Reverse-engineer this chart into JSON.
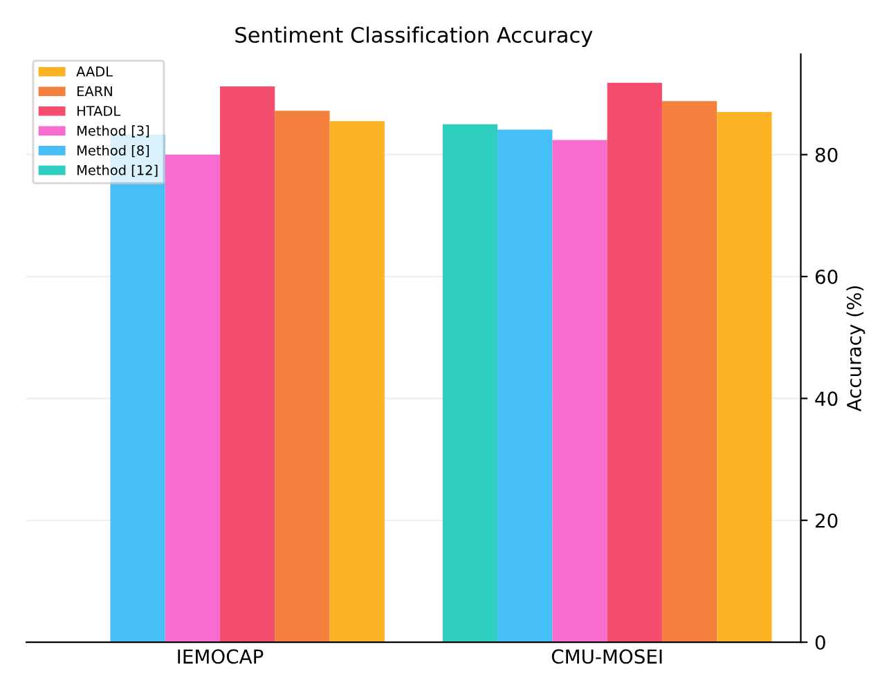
{
  "chart_data": {
    "type": "bar",
    "title": "Sentiment Classification Accuracy",
    "ylabel": "Accuracy (%)",
    "categories": [
      "IEMOCAP",
      "CMU-MOSEI"
    ],
    "series": [
      {
        "name": "Method [12]",
        "color": "#2ecfc0",
        "values": [
          null,
          85.0
        ]
      },
      {
        "name": "Method [8]",
        "color": "#45bff5",
        "values": [
          83.3,
          84.1
        ]
      },
      {
        "name": "Method [3]",
        "color": "#f76dcf",
        "values": [
          80.0,
          82.4
        ]
      },
      {
        "name": "HTADL",
        "color": "#f54d6e",
        "values": [
          91.2,
          91.8
        ]
      },
      {
        "name": "EARN",
        "color": "#f4803e",
        "values": [
          87.2,
          88.8
        ]
      },
      {
        "name": "AADL",
        "color": "#fbb324",
        "values": [
          85.5,
          87.0
        ]
      }
    ],
    "ylim": [
      0,
      96.5
    ],
    "yticks": [
      0,
      20,
      40,
      60,
      80
    ],
    "grid": "y",
    "legend": "top left"
  }
}
